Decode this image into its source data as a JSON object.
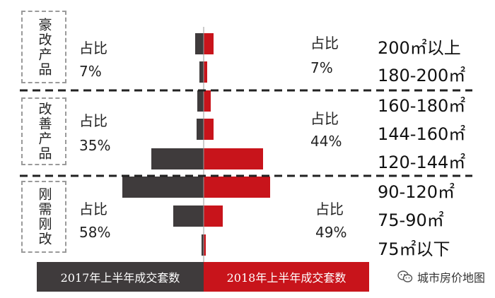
{
  "segments": [
    {
      "name": "豪改产品",
      "left_share": "占比",
      "left_pct": "7%",
      "right_share": "占比",
      "right_pct": "7%"
    },
    {
      "name": "改善产品",
      "left_share": "占比",
      "left_pct": "35%",
      "right_share": "占比",
      "right_pct": "44%"
    },
    {
      "name": "刚需刚改",
      "left_share": "占比",
      "left_pct": "58%",
      "right_share": "占比",
      "right_pct": "49%"
    }
  ],
  "legend": {
    "left": "2017年上半年成交套数",
    "right": "2018年上半年成交套数",
    "left_color": "#3f3b3c",
    "right_color": "#c8141b"
  },
  "watermark": "城市房价地图",
  "chart_data": {
    "type": "bar",
    "orientation": "horizontal-butterfly",
    "categories": [
      "200㎡以上",
      "180-200㎡",
      "160-180㎡",
      "144-160㎡",
      "120-144㎡",
      "90-120㎡",
      "75-90㎡",
      "75㎡以下"
    ],
    "series": [
      {
        "name": "2017年上半年成交套数",
        "values": [
          12,
          6,
          9,
          10,
          74,
          115,
          43,
          3
        ]
      },
      {
        "name": "2018年上半年成交套数",
        "values": [
          14,
          5,
          10,
          14,
          84,
          94,
          27,
          3
        ]
      }
    ]
  }
}
